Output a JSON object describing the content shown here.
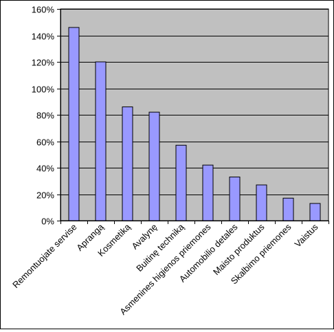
{
  "chart_data": {
    "type": "bar",
    "title": "",
    "xlabel": "",
    "ylabel": "",
    "categories": [
      "Remontuojate servise",
      "Aprangą",
      "Kosmetiką",
      "Avalynę",
      "Buitinę techniką",
      "Asmenines higienos priemones",
      "Automobilio detales",
      "Maisto produktus",
      "Skalbimo priemones",
      "Vaistus"
    ],
    "values": [
      146,
      120,
      86,
      82,
      57,
      42,
      33,
      27,
      17,
      13
    ],
    "ylim": [
      0,
      160
    ],
    "yticks": [
      0,
      20,
      40,
      60,
      80,
      100,
      120,
      140,
      160
    ],
    "ytick_labels": [
      "0%",
      "20%",
      "40%",
      "60%",
      "80%",
      "100%",
      "120%",
      "140%",
      "160%"
    ],
    "grid": true,
    "legend": "none",
    "colors": {
      "plot_background": "#c0c0c0",
      "bar_fill": "#9999ff",
      "bar_stroke": "#000000",
      "gridline": "#000000"
    }
  }
}
